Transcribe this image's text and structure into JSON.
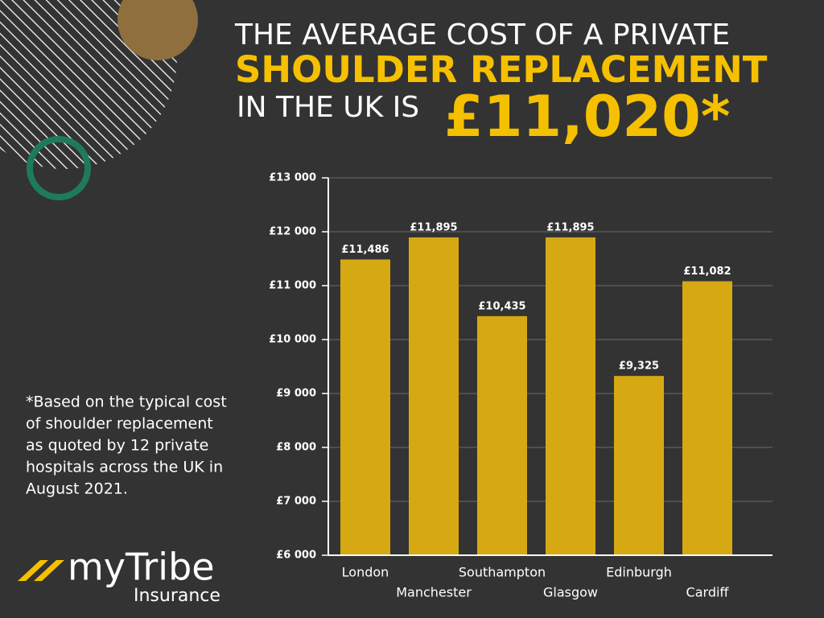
{
  "header": {
    "line1": "THE AVERAGE COST OF A PRIVATE",
    "line2": "SHOULDER REPLACEMENT",
    "line3": "IN THE UK IS",
    "amount": "£11,020*"
  },
  "footnote": [
    "*Based on the typical cost",
    "of shoulder replacement",
    "as quoted by 12 private",
    "hospitals across the UK in",
    "August 2021."
  ],
  "logo": {
    "brand": "myTribe",
    "sub": "Insurance"
  },
  "chart_data": {
    "type": "bar",
    "categories": [
      "London",
      "Manchester",
      "Southampton",
      "Glasgow",
      "Edinburgh",
      "Cardiff"
    ],
    "values": [
      11486,
      11895,
      10435,
      11895,
      9325,
      11082
    ],
    "value_labels": [
      "£11,486",
      "£11,895",
      "£10,435",
      "£11,895",
      "£9,325",
      "£11,082"
    ],
    "color": "#d6a912",
    "ylim": [
      6000,
      13000
    ],
    "yticks": [
      {
        "value": 6000,
        "label": "£6 000"
      },
      {
        "value": 7000,
        "label": "£7 000"
      },
      {
        "value": 8000,
        "label": "£8 000"
      },
      {
        "value": 9000,
        "label": "£9 000"
      },
      {
        "value": 10000,
        "label": "£10 000"
      },
      {
        "value": 11000,
        "label": "£11 000"
      },
      {
        "value": 12000,
        "label": "£12 000"
      },
      {
        "value": 13000,
        "label": "£13 000"
      }
    ],
    "grid": true
  }
}
